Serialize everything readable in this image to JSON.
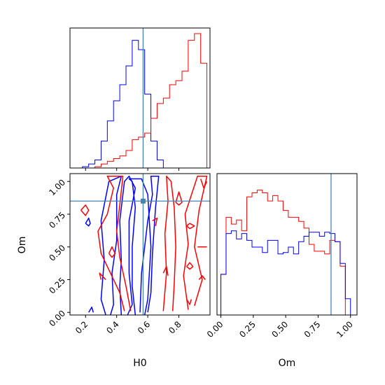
{
  "chart_data": {
    "type": "corner",
    "parameters": [
      "H0",
      "Om"
    ],
    "axis_labels": {
      "x_left": "H0",
      "x_right": "Om",
      "y_left": "Om"
    },
    "truth": {
      "H0": 0.57,
      "Om": 0.85
    },
    "colors": {
      "series_a": "#0000ff",
      "series_b": "#ff0000",
      "truth": "#4682b4",
      "frame": "#000000"
    },
    "H0_hist": {
      "bin_edges": [
        0.1,
        0.14,
        0.18,
        0.22,
        0.26,
        0.3,
        0.34,
        0.38,
        0.42,
        0.46,
        0.5,
        0.54,
        0.58,
        0.62,
        0.66,
        0.7,
        0.74,
        0.78,
        0.82,
        0.86,
        0.9,
        0.94,
        0.98
      ],
      "series": [
        {
          "color": "blue",
          "values": [
            0,
            0,
            0.01,
            0.03,
            0.06,
            0.2,
            0.35,
            0.5,
            0.62,
            0.76,
            0.95,
            0.88,
            0.55,
            0.2,
            0.06,
            0,
            0,
            0,
            0,
            0,
            0,
            0
          ]
        },
        {
          "color": "red",
          "values": [
            0,
            0,
            0,
            0,
            0.01,
            0.03,
            0.05,
            0.07,
            0.09,
            0.13,
            0.21,
            0.23,
            0.26,
            0.37,
            0.48,
            0.52,
            0.62,
            0.65,
            0.72,
            0.95,
            1.0,
            0.78
          ]
        }
      ],
      "xlim": [
        0.1,
        1.0
      ]
    },
    "Om_hist": {
      "bin_edges": [
        0.0,
        0.04,
        0.08,
        0.12,
        0.16,
        0.2,
        0.24,
        0.28,
        0.32,
        0.36,
        0.4,
        0.44,
        0.48,
        0.52,
        0.56,
        0.6,
        0.64,
        0.68,
        0.72,
        0.76,
        0.8,
        0.84,
        0.88,
        0.92,
        0.96,
        1.0
      ],
      "series": [
        {
          "color": "red",
          "values": [
            0.3,
            0.72,
            0.67,
            0.7,
            0.62,
            0.87,
            0.9,
            0.92,
            0.9,
            0.84,
            0.88,
            0.84,
            0.77,
            0.72,
            0.72,
            0.69,
            0.64,
            0.52,
            0.47,
            0.47,
            0.45,
            0.55,
            0.54,
            0.36,
            0.0
          ]
        },
        {
          "color": "blue",
          "values": [
            0.3,
            0.6,
            0.62,
            0.56,
            0.6,
            0.55,
            0.5,
            0.5,
            0.46,
            0.55,
            0.55,
            0.45,
            0.46,
            0.5,
            0.45,
            0.54,
            0.58,
            0.61,
            0.61,
            0.58,
            0.61,
            0.6,
            0.54,
            0.38,
            0.12
          ]
        }
      ],
      "xlim": [
        -0.03,
        1.05
      ],
      "xticks": [
        "0.00",
        "0.25",
        "0.50",
        "0.75",
        "1.00"
      ]
    },
    "joint": {
      "xlim": [
        0.1,
        1.0
      ],
      "ylim": [
        -0.02,
        1.06
      ],
      "xticks": [
        "0.2",
        "0.4",
        "0.6",
        "0.8"
      ],
      "yticks": [
        "0.00",
        "0.25",
        "0.50",
        "0.75",
        "1.00"
      ],
      "blue_contours": [
        [
          [
            0.52,
            -0.02
          ],
          [
            0.5,
            0.2
          ],
          [
            0.5,
            0.5
          ],
          [
            0.52,
            0.8
          ],
          [
            0.5,
            1.0
          ],
          [
            0.48,
            1.02
          ],
          [
            0.56,
            1.02
          ],
          [
            0.6,
            0.9
          ],
          [
            0.62,
            0.5
          ],
          [
            0.6,
            0.1
          ],
          [
            0.58,
            -0.02
          ]
        ],
        [
          [
            0.43,
            -0.02
          ],
          [
            0.42,
            0.2
          ],
          [
            0.43,
            0.4
          ],
          [
            0.42,
            0.7
          ],
          [
            0.45,
            1.0
          ],
          [
            0.48,
            1.04
          ],
          [
            0.52,
            0.95
          ],
          [
            0.48,
            0.7
          ],
          [
            0.48,
            0.3
          ],
          [
            0.5,
            0.06
          ],
          [
            0.47,
            -0.02
          ]
        ],
        [
          [
            0.33,
            -0.02
          ],
          [
            0.3,
            0.1
          ],
          [
            0.32,
            0.4
          ],
          [
            0.3,
            0.7
          ],
          [
            0.35,
            1.0
          ],
          [
            0.43,
            1.04
          ],
          [
            0.4,
            0.9
          ],
          [
            0.4,
            0.55
          ],
          [
            0.37,
            0.3
          ],
          [
            0.38,
            0.06
          ],
          [
            0.36,
            -0.02
          ]
        ],
        [
          [
            0.55,
            0.0
          ],
          [
            0.56,
            0.3
          ],
          [
            0.6,
            0.7
          ],
          [
            0.63,
            0.9
          ],
          [
            0.62,
            1.04
          ],
          [
            0.67,
            1.04
          ],
          [
            0.65,
            0.8
          ],
          [
            0.63,
            0.45
          ],
          [
            0.62,
            0.15
          ],
          [
            0.6,
            0.0
          ]
        ],
        [
          [
            0.22,
            0.0
          ],
          [
            0.24,
            0.04
          ],
          [
            0.25,
            0.0
          ]
        ],
        [
          [
            0.2,
            0.68
          ],
          [
            0.22,
            0.72
          ],
          [
            0.23,
            0.68
          ],
          [
            0.22,
            0.66
          ],
          [
            0.2,
            0.68
          ]
        ]
      ],
      "red_contours": [
        [
          [
            0.3,
            0.25
          ],
          [
            0.29,
            0.3
          ],
          [
            0.33,
            0.25
          ]
        ],
        [
          [
            0.45,
            0.01
          ],
          [
            0.42,
            0.15
          ],
          [
            0.36,
            0.3
          ],
          [
            0.3,
            0.45
          ],
          [
            0.28,
            0.62
          ],
          [
            0.34,
            0.75
          ],
          [
            0.38,
            0.95
          ],
          [
            0.34,
            1.04
          ],
          [
            0.44,
            1.04
          ],
          [
            0.42,
            0.82
          ],
          [
            0.4,
            0.62
          ],
          [
            0.42,
            0.42
          ],
          [
            0.46,
            0.2
          ],
          [
            0.49,
            0.01
          ]
        ],
        [
          [
            0.7,
            0.01
          ],
          [
            0.72,
            0.3
          ],
          [
            0.71,
            0.6
          ],
          [
            0.73,
            0.85
          ],
          [
            0.72,
            1.04
          ],
          [
            0.75,
            1.0
          ],
          [
            0.77,
            0.8
          ],
          [
            0.78,
            0.5
          ],
          [
            0.77,
            0.22
          ],
          [
            0.76,
            0.01
          ]
        ],
        [
          [
            0.86,
            0.02
          ],
          [
            0.83,
            0.28
          ],
          [
            0.86,
            0.52
          ],
          [
            0.84,
            0.75
          ],
          [
            0.92,
            1.04
          ],
          [
            0.98,
            1.04
          ],
          [
            0.93,
            0.78
          ],
          [
            0.9,
            0.5
          ],
          [
            0.95,
            0.25
          ],
          [
            0.9,
            0.05
          ]
        ],
        [
          [
            0.78,
            0.84
          ],
          [
            0.8,
            0.92
          ],
          [
            0.82,
            0.84
          ],
          [
            0.8,
            0.82
          ],
          [
            0.78,
            0.84
          ]
        ],
        [
          [
            0.17,
            0.78
          ],
          [
            0.2,
            0.82
          ],
          [
            0.22,
            0.78
          ],
          [
            0.2,
            0.74
          ],
          [
            0.17,
            0.78
          ]
        ],
        [
          [
            0.35,
            0.45
          ],
          [
            0.37,
            0.5
          ],
          [
            0.39,
            0.45
          ],
          [
            0.37,
            0.42
          ],
          [
            0.35,
            0.45
          ]
        ],
        [
          [
            0.7,
            0.3
          ],
          [
            0.72,
            0.35
          ],
          [
            0.73,
            0.28
          ]
        ],
        [
          [
            0.63,
            0.7
          ],
          [
            0.66,
            0.72
          ],
          [
            0.65,
            0.66
          ]
        ],
        [
          [
            0.85,
            0.66
          ],
          [
            0.87,
            0.68
          ],
          [
            0.9,
            0.66
          ],
          [
            0.87,
            0.64
          ],
          [
            0.85,
            0.66
          ]
        ],
        [
          [
            0.92,
            0.5
          ],
          [
            0.98,
            0.5
          ]
        ],
        [
          [
            0.85,
            0.35
          ],
          [
            0.87,
            0.38
          ],
          [
            0.89,
            0.35
          ],
          [
            0.87,
            0.33
          ],
          [
            0.85,
            0.35
          ]
        ],
        [
          [
            0.93,
            0.25
          ],
          [
            0.95,
            0.28
          ],
          [
            0.97,
            0.25
          ]
        ],
        [
          [
            0.85,
            0.1
          ],
          [
            0.87,
            0.06
          ],
          [
            0.88,
            0.1
          ]
        ],
        [
          [
            0.94,
            1.02
          ],
          [
            0.96,
            0.95
          ],
          [
            0.98,
            1.0
          ]
        ]
      ]
    }
  }
}
